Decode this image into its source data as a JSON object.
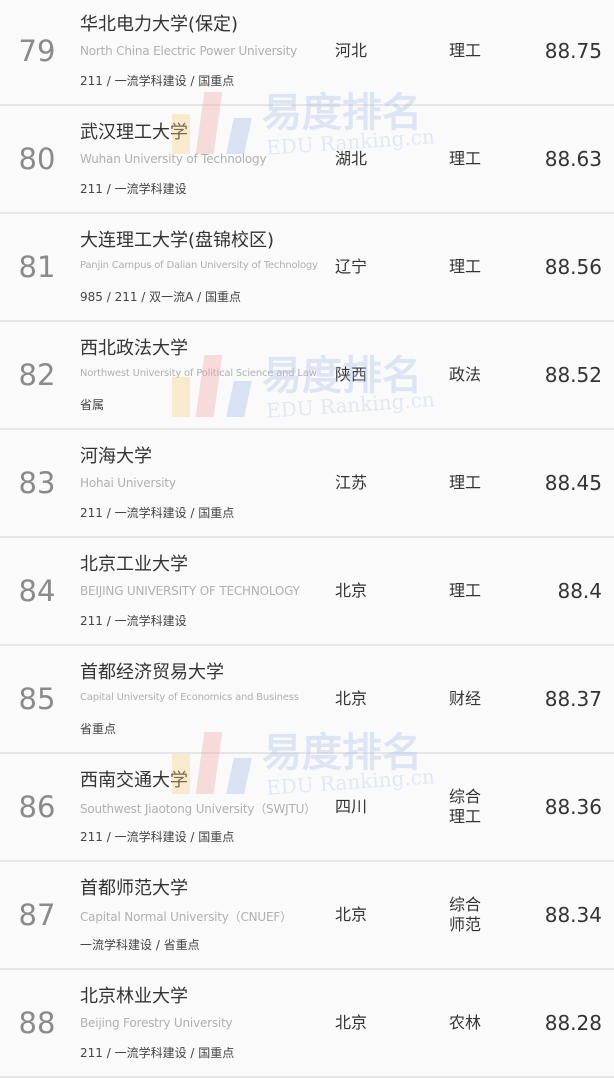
{
  "watermark": {
    "cn": "易度排名",
    "en": "EDU Ranking.cn"
  },
  "rows": [
    {
      "rank": "79",
      "name": "华北电力大学(保定)",
      "en": "North China Electric Power University",
      "tags": "211 / 一流学科建设 / 国重点",
      "province": "河北",
      "type": "理工",
      "score": "88.75"
    },
    {
      "rank": "80",
      "name": "武汉理工大学",
      "en": "Wuhan University of Technology",
      "tags": "211 / 一流学科建设",
      "province": "湖北",
      "type": "理工",
      "score": "88.63"
    },
    {
      "rank": "81",
      "name": "大连理工大学(盘锦校区)",
      "en": "Panjin Campus of Dalian University of Technology",
      "tags": "985 / 211 / 双一流A / 国重点",
      "province": "辽宁",
      "type": "理工",
      "score": "88.56"
    },
    {
      "rank": "82",
      "name": "西北政法大学",
      "en": "Northwest University of Political Science and Law",
      "tags": "省属",
      "province": "陕西",
      "type": "政法",
      "score": "88.52"
    },
    {
      "rank": "83",
      "name": "河海大学",
      "en": "Hohai University",
      "tags": "211 / 一流学科建设 / 国重点",
      "province": "江苏",
      "type": "理工",
      "score": "88.45"
    },
    {
      "rank": "84",
      "name": "北京工业大学",
      "en": "BEIJING UNIVERSITY OF TECHNOLOGY",
      "tags": "211 / 一流学科建设",
      "province": "北京",
      "type": "理工",
      "score": "88.4"
    },
    {
      "rank": "85",
      "name": "首都经济贸易大学",
      "en": "Capital University of Economics and Business",
      "tags": "省重点",
      "province": "北京",
      "type": "财经",
      "score": "88.37"
    },
    {
      "rank": "86",
      "name": "西南交通大学",
      "en": "Southwest Jiaotong University（SWJTU）",
      "tags": "211 / 一流学科建设 / 国重点",
      "province": "四川",
      "type": "综合\n理工",
      "score": "88.36"
    },
    {
      "rank": "87",
      "name": "首都师范大学",
      "en": "Capital Normal University（CNUEF）",
      "tags": "一流学科建设 / 省重点",
      "province": "北京",
      "type": "综合\n师范",
      "score": "88.34"
    },
    {
      "rank": "88",
      "name": "北京林业大学",
      "en": "Beijing Forestry University",
      "tags": "211 / 一流学科建设 / 国重点",
      "province": "北京",
      "type": "农林",
      "score": "88.28"
    }
  ]
}
